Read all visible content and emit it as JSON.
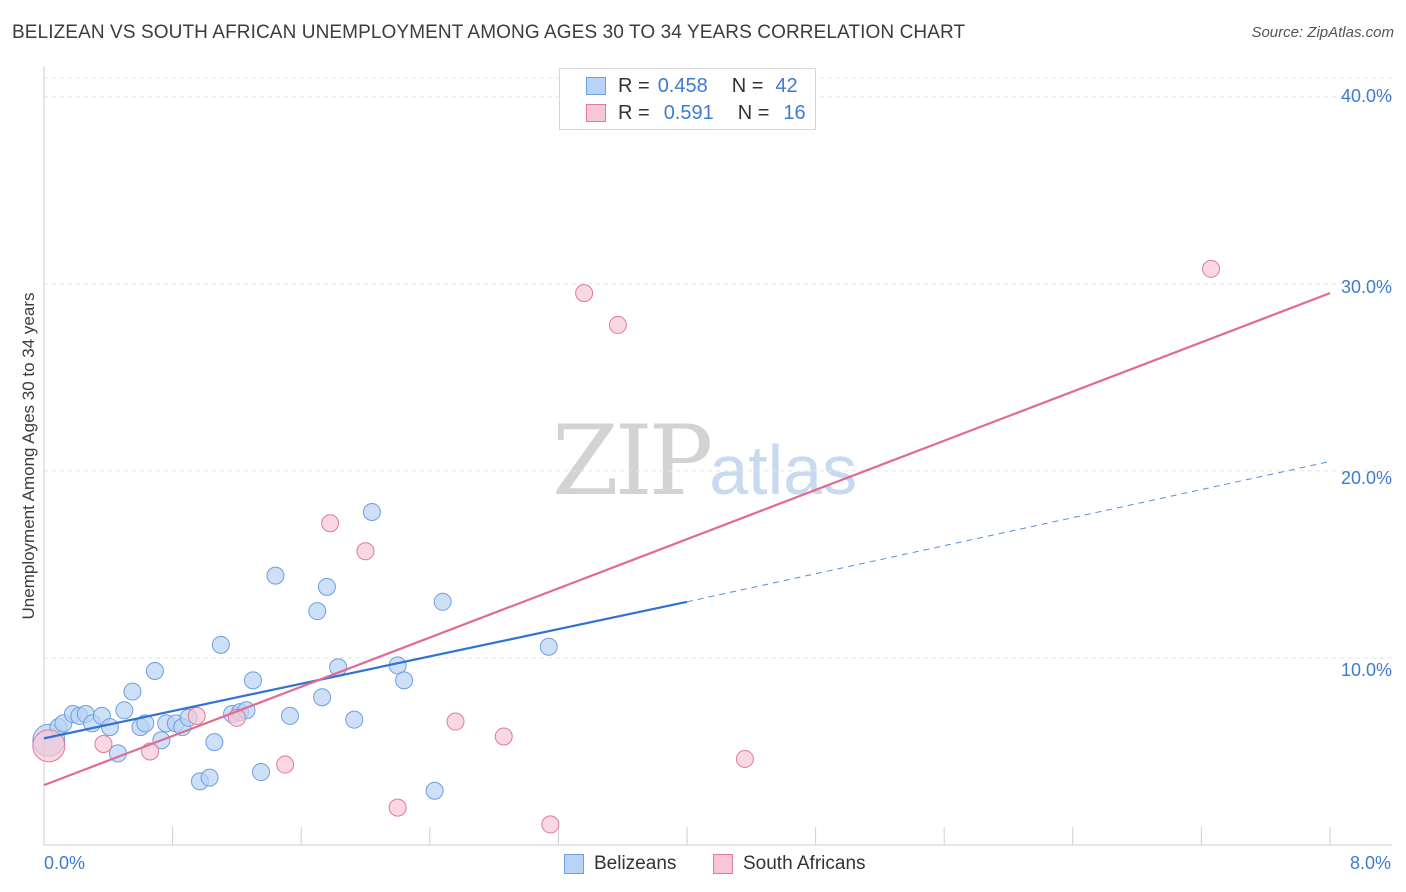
{
  "header": {
    "title": "BELIZEAN VS SOUTH AFRICAN UNEMPLOYMENT AMONG AGES 30 TO 34 YEARS CORRELATION CHART",
    "source": "Source: ZipAtlas.com"
  },
  "watermark": {
    "zip": "ZIP",
    "atlas": "atlas"
  },
  "legend": {
    "belizeans": {
      "r_label": "R =",
      "r_value": "0.458",
      "n_label": "N =",
      "n_value": "42"
    },
    "south_africans": {
      "r_label": "R =",
      "r_value": "0.591",
      "n_label": "N =",
      "n_value": "16"
    }
  },
  "colors": {
    "blue_fill": "#b8d3f5",
    "blue_stroke": "#6f9fdc",
    "blue_line": "#2f74d0",
    "pink_fill": "#f8c7d6",
    "pink_stroke": "#e07a9b",
    "pink_line": "#e06a93",
    "grid": "#e3e3e3",
    "axis_text": "#3d7bd1"
  },
  "chart_data": {
    "type": "scatter",
    "title": "BELIZEAN VS SOUTH AFRICAN UNEMPLOYMENT AMONG AGES 30 TO 34 YEARS CORRELATION CHART",
    "xlabel": "",
    "ylabel": "Unemployment Among Ages 30 to 34 years",
    "xlim": [
      0,
      8
    ],
    "ylim": [
      0,
      41
    ],
    "x_tick_labels": [
      "0.0%",
      "8.0%"
    ],
    "y_ticks": [
      10,
      20,
      30,
      40
    ],
    "y_tick_labels": [
      "10.0%",
      "20.0%",
      "30.0%",
      "40.0%"
    ],
    "legend_position": "top-center",
    "series": [
      {
        "name": "Belizeans",
        "r": 0.458,
        "n": 42,
        "points": [
          {
            "x": 0.03,
            "y": 5.6,
            "big": true
          },
          {
            "x": 0.09,
            "y": 6.3
          },
          {
            "x": 0.12,
            "y": 6.5
          },
          {
            "x": 0.18,
            "y": 7.0
          },
          {
            "x": 0.22,
            "y": 6.9
          },
          {
            "x": 0.26,
            "y": 7.0
          },
          {
            "x": 0.3,
            "y": 6.5
          },
          {
            "x": 0.36,
            "y": 6.9
          },
          {
            "x": 0.41,
            "y": 6.3
          },
          {
            "x": 0.46,
            "y": 4.9
          },
          {
            "x": 0.5,
            "y": 7.2
          },
          {
            "x": 0.55,
            "y": 8.2
          },
          {
            "x": 0.6,
            "y": 6.3
          },
          {
            "x": 0.63,
            "y": 6.5
          },
          {
            "x": 0.69,
            "y": 9.3
          },
          {
            "x": 0.73,
            "y": 5.6
          },
          {
            "x": 0.76,
            "y": 6.5
          },
          {
            "x": 0.82,
            "y": 6.5
          },
          {
            "x": 0.86,
            "y": 6.3
          },
          {
            "x": 0.9,
            "y": 6.8
          },
          {
            "x": 0.97,
            "y": 3.4
          },
          {
            "x": 1.03,
            "y": 3.6
          },
          {
            "x": 1.06,
            "y": 5.5
          },
          {
            "x": 1.1,
            "y": 10.7
          },
          {
            "x": 1.17,
            "y": 7.0
          },
          {
            "x": 1.22,
            "y": 7.1
          },
          {
            "x": 1.26,
            "y": 7.2
          },
          {
            "x": 1.3,
            "y": 8.8
          },
          {
            "x": 1.35,
            "y": 3.9
          },
          {
            "x": 1.44,
            "y": 14.4
          },
          {
            "x": 1.53,
            "y": 6.9
          },
          {
            "x": 1.7,
            "y": 12.5
          },
          {
            "x": 1.73,
            "y": 7.9
          },
          {
            "x": 1.76,
            "y": 13.8
          },
          {
            "x": 1.83,
            "y": 9.5
          },
          {
            "x": 1.93,
            "y": 6.7
          },
          {
            "x": 2.04,
            "y": 17.8
          },
          {
            "x": 2.2,
            "y": 9.6
          },
          {
            "x": 2.24,
            "y": 8.8
          },
          {
            "x": 2.43,
            "y": 2.9
          },
          {
            "x": 2.48,
            "y": 13.0
          },
          {
            "x": 3.14,
            "y": 10.6
          }
        ],
        "trend": {
          "x0": 0.0,
          "y0": 5.7,
          "x1": 4.0,
          "y1": 13.0,
          "dash_x1": 8.0,
          "dash_y1": 20.5
        }
      },
      {
        "name": "South Africans",
        "r": 0.591,
        "n": 16,
        "points": [
          {
            "x": 0.03,
            "y": 5.3,
            "big": true
          },
          {
            "x": 0.37,
            "y": 5.4
          },
          {
            "x": 0.66,
            "y": 5.0
          },
          {
            "x": 0.95,
            "y": 6.9
          },
          {
            "x": 1.2,
            "y": 6.8
          },
          {
            "x": 1.5,
            "y": 4.3
          },
          {
            "x": 1.78,
            "y": 17.2
          },
          {
            "x": 2.0,
            "y": 15.7
          },
          {
            "x": 2.2,
            "y": 2.0
          },
          {
            "x": 2.56,
            "y": 6.6
          },
          {
            "x": 2.86,
            "y": 5.8
          },
          {
            "x": 3.15,
            "y": 1.1
          },
          {
            "x": 3.36,
            "y": 29.5
          },
          {
            "x": 3.57,
            "y": 27.8
          },
          {
            "x": 4.36,
            "y": 4.6
          },
          {
            "x": 7.26,
            "y": 30.8
          }
        ],
        "trend": {
          "x0": 0.0,
          "y0": 3.2,
          "x1": 8.0,
          "y1": 29.5
        }
      }
    ]
  }
}
